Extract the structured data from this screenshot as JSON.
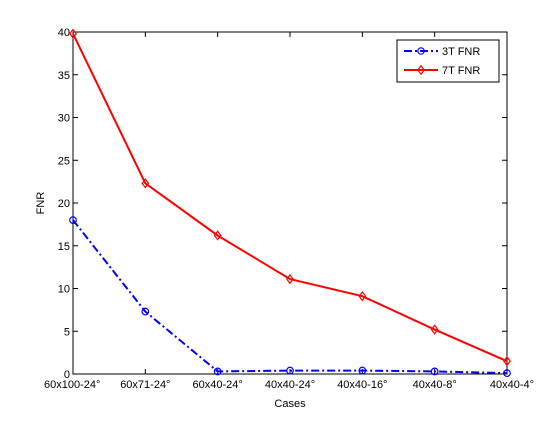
{
  "chart_data": {
    "type": "line",
    "title": "",
    "xlabel": "Cases",
    "ylabel": "FNR",
    "categories": [
      "60x100-24°",
      "60x71-24°",
      "60x40-24°",
      "40x40-24°",
      "40x40-16°",
      "40x40-8°",
      "40x40-4°"
    ],
    "ylim": [
      0,
      40
    ],
    "yticks": [
      "0",
      "5",
      "10",
      "15",
      "20",
      "25",
      "30",
      "35",
      "40"
    ],
    "grid": false,
    "legend_position": "top-right",
    "series": [
      {
        "name": "3T FNR",
        "values": [
          18.0,
          7.3,
          0.3,
          0.4,
          0.4,
          0.3,
          0.1
        ],
        "color": "#0000ff",
        "line_style": "dash-dot",
        "marker": "circle"
      },
      {
        "name": "7T FNR",
        "values": [
          39.8,
          22.3,
          16.2,
          11.1,
          9.1,
          5.2,
          1.5
        ],
        "color": "#ff0000",
        "line_style": "solid",
        "marker": "diamond"
      }
    ]
  }
}
